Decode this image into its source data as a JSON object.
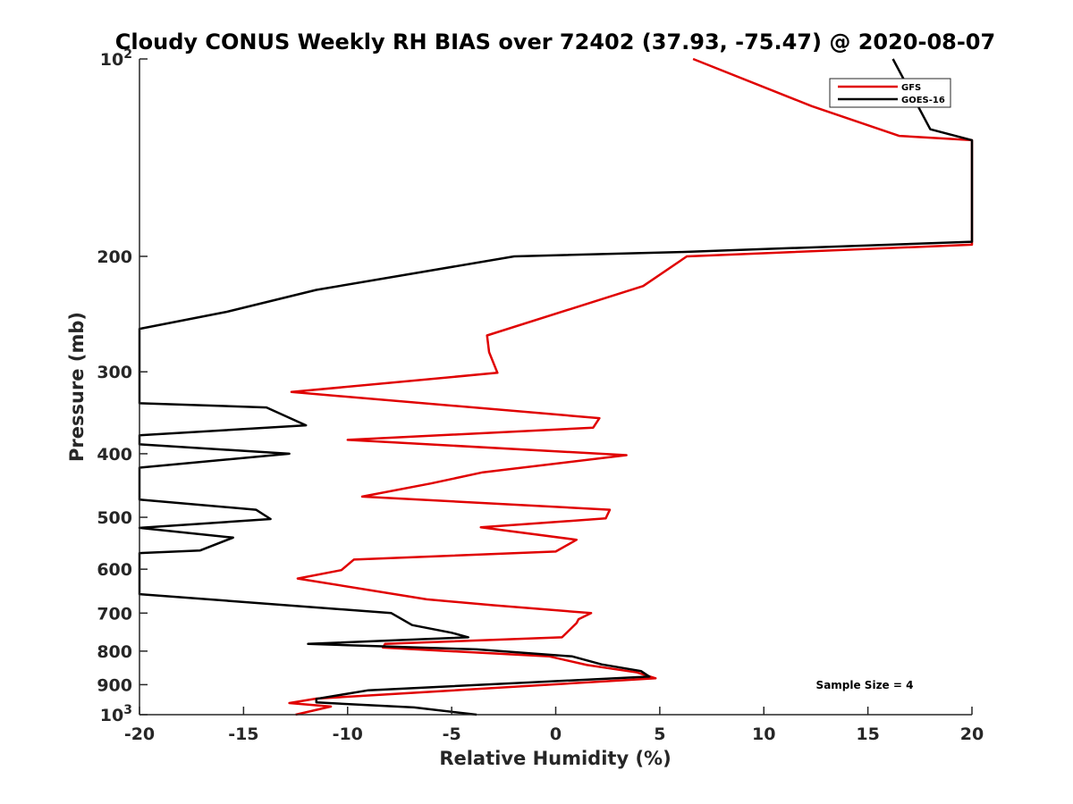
{
  "chart_data": {
    "type": "line",
    "title": "Cloudy CONUS Weekly RH BIAS over 72402 (37.93, -75.47) @ 2020-08-07",
    "xlabel": "Relative Humidity (%)",
    "ylabel": "Pressure (mb)",
    "xlim": [
      -20,
      20
    ],
    "ylim": [
      100,
      1000
    ],
    "y_scale": "log",
    "y_reversed": true,
    "x_ticks": [
      "-20",
      "-15",
      "-10",
      "-5",
      "0",
      "5",
      "10",
      "15",
      "20"
    ],
    "x_tick_values": [
      -20,
      -15,
      -10,
      -5,
      0,
      5,
      10,
      15,
      20
    ],
    "y_ticks": [
      {
        "value": 100,
        "base": "10",
        "exp": "2"
      },
      {
        "value": 200,
        "label": "200"
      },
      {
        "value": 300,
        "label": "300"
      },
      {
        "value": 400,
        "label": "400"
      },
      {
        "value": 500,
        "label": "500"
      },
      {
        "value": 600,
        "label": "600"
      },
      {
        "value": 700,
        "label": "700"
      },
      {
        "value": 800,
        "label": "800"
      },
      {
        "value": 900,
        "label": "900"
      },
      {
        "value": 1000,
        "base": "10",
        "exp": "3"
      }
    ],
    "grid": false,
    "legend_position": "top-right",
    "annotation": "Sample Size = 4",
    "series": [
      {
        "name": "GFS",
        "color": "#e00000",
        "points": [
          [
            6.6,
            100
          ],
          [
            12.3,
            118
          ],
          [
            16.5,
            131
          ],
          [
            20,
            133
          ],
          [
            20,
            192
          ],
          [
            6.3,
            200
          ],
          [
            4.2,
            222
          ],
          [
            -3.3,
            264
          ],
          [
            -3.2,
            280
          ],
          [
            -2.8,
            301
          ],
          [
            -12.7,
            322
          ],
          [
            2.1,
            353
          ],
          [
            1.8,
            365
          ],
          [
            -10.0,
            381
          ],
          [
            3.4,
            402
          ],
          [
            -3.5,
            427
          ],
          [
            -6.0,
            444
          ],
          [
            -9.3,
            465
          ],
          [
            2.6,
            487
          ],
          [
            2.4,
            502
          ],
          [
            -3.6,
            518
          ],
          [
            1.0,
            541
          ],
          [
            0.0,
            564
          ],
          [
            -9.7,
            580
          ],
          [
            -10.3,
            602
          ],
          [
            -12.4,
            620
          ],
          [
            -7.2,
            659
          ],
          [
            -6.2,
            667
          ],
          [
            -3.0,
            681
          ],
          [
            1.7,
            700
          ],
          [
            1.1,
            715
          ],
          [
            1.0,
            725
          ],
          [
            0.3,
            762
          ],
          [
            -8.2,
            780
          ],
          [
            -8.3,
            790
          ],
          [
            -0.3,
            815
          ],
          [
            1.5,
            840
          ],
          [
            3.9,
            862
          ],
          [
            4.8,
            880
          ],
          [
            -11.5,
            945
          ],
          [
            -12.8,
            960
          ],
          [
            -10.8,
            972
          ],
          [
            -12.5,
            1000
          ]
        ]
      },
      {
        "name": "GOES-16",
        "color": "#000000",
        "points": [
          [
            16.2,
            100
          ],
          [
            18.0,
            128
          ],
          [
            20,
            133
          ],
          [
            20,
            190
          ],
          [
            6.0,
            197
          ],
          [
            -2.0,
            200
          ],
          [
            -11.5,
            225
          ],
          [
            -15.8,
            243
          ],
          [
            -20,
            258
          ],
          [
            -20,
            335
          ],
          [
            -13.9,
            340
          ],
          [
            -12.0,
            362
          ],
          [
            -20,
            375
          ],
          [
            -20,
            387
          ],
          [
            -12.8,
            400
          ],
          [
            -20,
            420
          ],
          [
            -20,
            470
          ],
          [
            -14.4,
            487
          ],
          [
            -13.7,
            503
          ],
          [
            -20,
            519
          ],
          [
            -15.5,
            537
          ],
          [
            -17.1,
            562
          ],
          [
            -20,
            567
          ],
          [
            -20,
            655
          ],
          [
            -7.9,
            700
          ],
          [
            -6.9,
            730
          ],
          [
            -5.0,
            750
          ],
          [
            -4.2,
            762
          ],
          [
            -11.9,
            780
          ],
          [
            -3.8,
            795
          ],
          [
            0.8,
            815
          ],
          [
            2.2,
            838
          ],
          [
            4.1,
            858
          ],
          [
            4.5,
            875
          ],
          [
            -9.0,
            918
          ],
          [
            -11.5,
            946
          ],
          [
            -11.5,
            958
          ],
          [
            -6.8,
            975
          ],
          [
            -3.8,
            1000
          ]
        ]
      }
    ]
  }
}
